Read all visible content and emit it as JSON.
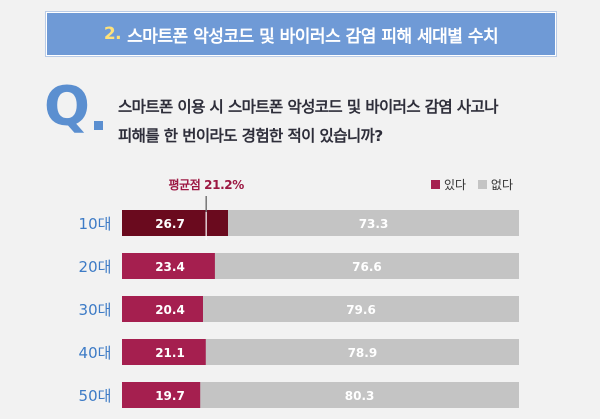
{
  "banner": {
    "number": "2.",
    "title": "스마트폰 악성코드 및 바이러스 감염 피해 세대별 수치"
  },
  "question": {
    "letter": "Q",
    "line1": "스마트폰 이용 시 스마트폰 악성코드 및 바이러스 감염 사고나",
    "line2": "피해를 한 번이라도 경험한 적이 있습니까?"
  },
  "colors": {
    "yes": "#a51f4f",
    "yes_first": "#6a0a1e",
    "no": "#c4c4c4",
    "accent": "#6f9ad6"
  },
  "chart_data": {
    "type": "bar",
    "orientation": "horizontal",
    "stacked": true,
    "categories": [
      "10대",
      "20대",
      "30대",
      "40대",
      "50대"
    ],
    "series": [
      {
        "name": "있다",
        "values": [
          26.7,
          23.4,
          20.4,
          21.1,
          19.7
        ]
      },
      {
        "name": "없다",
        "values": [
          73.3,
          76.6,
          79.6,
          78.9,
          80.3
        ]
      }
    ],
    "xlim": [
      0,
      100
    ],
    "average": {
      "label": "평균점 21.2%",
      "value": 21.2
    },
    "legend": {
      "position": "top-right",
      "entries": [
        "있다",
        "없다"
      ]
    }
  }
}
